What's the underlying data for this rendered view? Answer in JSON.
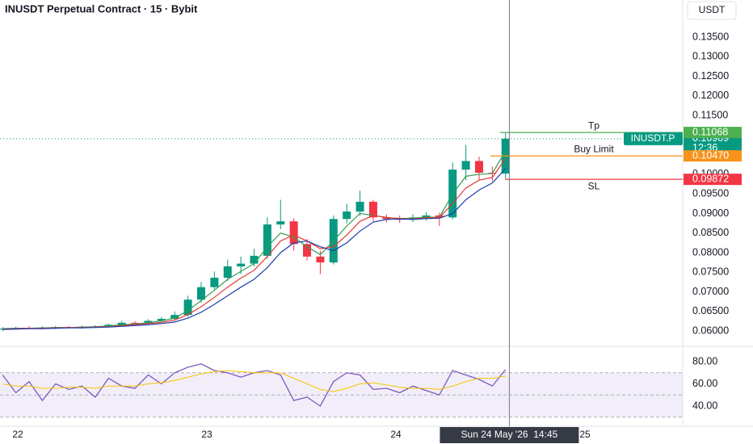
{
  "header": {
    "title": "INUSDT Perpetual Contract · 15 · Bybit",
    "currency_button": "USDT"
  },
  "chart_data": [
    {
      "type": "candlestick",
      "x": [
        21.92,
        21.99,
        22.06,
        22.13,
        22.2,
        22.27,
        22.34,
        22.41,
        22.48,
        22.55,
        22.62,
        22.69,
        22.76,
        22.83,
        22.9,
        22.97,
        23.04,
        23.11,
        23.18,
        23.25,
        23.32,
        23.39,
        23.46,
        23.53,
        23.6,
        23.67,
        23.74,
        23.81,
        23.88,
        23.95,
        24.02,
        24.09,
        24.16,
        24.23,
        24.3,
        24.37,
        24.44,
        24.51,
        24.58
      ],
      "open": [
        0.0604,
        0.0606,
        0.0608,
        0.0607,
        0.0609,
        0.061,
        0.0609,
        0.0611,
        0.0612,
        0.0616,
        0.0621,
        0.0619,
        0.0626,
        0.0631,
        0.0641,
        0.068,
        0.0712,
        0.0736,
        0.0765,
        0.0772,
        0.0792,
        0.0872,
        0.088,
        0.0822,
        0.079,
        0.0775,
        0.0886,
        0.0905,
        0.093,
        0.089,
        0.0886,
        0.0884,
        0.089,
        0.0895,
        0.089,
        0.1012,
        0.1034,
        0.1004,
        0.1002
      ],
      "high": [
        0.061,
        0.0611,
        0.0612,
        0.0612,
        0.0613,
        0.0613,
        0.0614,
        0.0615,
        0.0619,
        0.0626,
        0.0625,
        0.063,
        0.0636,
        0.065,
        0.069,
        0.0725,
        0.0752,
        0.0782,
        0.079,
        0.081,
        0.089,
        0.0935,
        0.0888,
        0.0835,
        0.0805,
        0.0895,
        0.0925,
        0.0958,
        0.0935,
        0.0898,
        0.0895,
        0.0898,
        0.0903,
        0.0902,
        0.103,
        0.1075,
        0.1045,
        0.102,
        0.1107
      ],
      "low": [
        0.06,
        0.0603,
        0.0604,
        0.0604,
        0.0605,
        0.0606,
        0.0606,
        0.0607,
        0.0609,
        0.0612,
        0.0614,
        0.0616,
        0.0622,
        0.0627,
        0.0636,
        0.0672,
        0.0705,
        0.0728,
        0.0745,
        0.0765,
        0.0785,
        0.086,
        0.0805,
        0.078,
        0.0745,
        0.077,
        0.0875,
        0.0895,
        0.088,
        0.0877,
        0.0876,
        0.0878,
        0.0882,
        0.0868,
        0.0885,
        0.0985,
        0.0985,
        0.0982,
        0.099
      ],
      "close": [
        0.0606,
        0.0608,
        0.0607,
        0.0609,
        0.061,
        0.0609,
        0.0611,
        0.0612,
        0.0616,
        0.0621,
        0.0619,
        0.0626,
        0.0631,
        0.0641,
        0.068,
        0.0712,
        0.0736,
        0.0765,
        0.0772,
        0.0792,
        0.0872,
        0.088,
        0.0822,
        0.079,
        0.0775,
        0.0886,
        0.0905,
        0.093,
        0.089,
        0.0886,
        0.0884,
        0.089,
        0.0895,
        0.089,
        0.1012,
        0.1034,
        0.1004,
        0.1002,
        0.1091
      ],
      "up_color": "#089981",
      "down_color": "#f23645",
      "moving_averages": [
        {
          "color": "#2e9e4f",
          "values": [
            0.0606,
            0.0607,
            0.0607,
            0.0608,
            0.0609,
            0.0609,
            0.061,
            0.0611,
            0.0613,
            0.0616,
            0.0618,
            0.0621,
            0.0626,
            0.0633,
            0.0652,
            0.0678,
            0.0704,
            0.0732,
            0.0752,
            0.0772,
            0.0815,
            0.085,
            0.084,
            0.0815,
            0.0795,
            0.083,
            0.0868,
            0.09,
            0.0895,
            0.089,
            0.0887,
            0.0888,
            0.0891,
            0.089,
            0.095,
            0.0995,
            0.1,
            0.1002,
            0.106
          ]
        },
        {
          "color": "#e53935",
          "values": [
            0.0605,
            0.0606,
            0.0607,
            0.0607,
            0.0608,
            0.0609,
            0.0609,
            0.061,
            0.0611,
            0.0614,
            0.0616,
            0.0619,
            0.0622,
            0.0628,
            0.0642,
            0.0662,
            0.0686,
            0.0712,
            0.0735,
            0.0755,
            0.079,
            0.083,
            0.0845,
            0.083,
            0.081,
            0.0815,
            0.0845,
            0.088,
            0.0895,
            0.089,
            0.0887,
            0.0886,
            0.0889,
            0.089,
            0.0925,
            0.0965,
            0.0985,
            0.0992,
            0.104
          ]
        },
        {
          "color": "#1e3fae",
          "values": [
            0.0604,
            0.0605,
            0.0606,
            0.0606,
            0.0607,
            0.0608,
            0.0608,
            0.0609,
            0.061,
            0.0612,
            0.0614,
            0.0616,
            0.0619,
            0.0623,
            0.0633,
            0.0648,
            0.0668,
            0.069,
            0.0712,
            0.0732,
            0.0762,
            0.08,
            0.0825,
            0.083,
            0.0815,
            0.0805,
            0.0825,
            0.0855,
            0.0878,
            0.0885,
            0.0886,
            0.0885,
            0.0887,
            0.0888,
            0.09,
            0.0935,
            0.096,
            0.0978,
            0.1015
          ]
        }
      ],
      "xlim": [
        21.906,
        25.517
      ],
      "xticks": [
        22,
        23,
        24,
        25
      ],
      "ylim": [
        0.0563,
        0.1445
      ],
      "yticks": [
        {
          "value": 0.06,
          "label": "0.06000"
        },
        {
          "value": 0.065,
          "label": "0.06500"
        },
        {
          "value": 0.07,
          "label": "0.07000"
        },
        {
          "value": 0.075,
          "label": "0.07500"
        },
        {
          "value": 0.08,
          "label": "0.08000"
        },
        {
          "value": 0.085,
          "label": "0.08500"
        },
        {
          "value": 0.09,
          "label": "0.09000"
        },
        {
          "value": 0.095,
          "label": "0.09500"
        },
        {
          "value": 0.1,
          "label": "0.10000"
        },
        {
          "value": 0.115,
          "label": "0.11500"
        },
        {
          "value": 0.12,
          "label": "0.12000"
        },
        {
          "value": 0.125,
          "label": "0.12500"
        },
        {
          "value": 0.13,
          "label": "0.13000"
        },
        {
          "value": 0.135,
          "label": "0.13500"
        }
      ],
      "levels": [
        {
          "name": "Tp",
          "value": 0.11068,
          "color": "#4caf50"
        },
        {
          "name": "Buy Limit",
          "value": 0.1047,
          "label": "0.10470",
          "color": "#f7931a"
        },
        {
          "name": "SL",
          "value": 0.09872,
          "label": "0.09872",
          "color": "#f23645"
        }
      ],
      "last_price": {
        "name": "INUSDT.P",
        "value": 0.10909,
        "countdown": "12:36",
        "color": "#089981"
      },
      "crosshair": {
        "x": 24.6,
        "label": "Sun 24 May '26  14:45"
      }
    },
    {
      "type": "line",
      "series": [
        {
          "color": "#7e57c2",
          "values": [
            68,
            52,
            62,
            45,
            60,
            55,
            58,
            48,
            65,
            58,
            56,
            68,
            60,
            70,
            75,
            78,
            72,
            70,
            66,
            70,
            72,
            68,
            45,
            48,
            40,
            62,
            70,
            68,
            55,
            56,
            52,
            58,
            54,
            50,
            72,
            68,
            64,
            58,
            73
          ]
        },
        {
          "color": "#f7c600",
          "values": [
            60,
            58,
            58,
            56,
            56,
            57,
            57,
            56,
            58,
            58,
            58,
            60,
            61,
            63,
            66,
            69,
            71,
            72,
            71,
            70,
            70,
            70,
            65,
            60,
            55,
            53,
            56,
            60,
            61,
            59,
            57,
            56,
            56,
            55,
            58,
            62,
            65,
            65,
            67
          ]
        }
      ],
      "ylim": [
        21.8,
        93.1
      ],
      "yticks": [
        {
          "value": 80,
          "label": "80.00"
        },
        {
          "value": 60,
          "label": "60.00"
        },
        {
          "value": 40,
          "label": "40.00"
        }
      ],
      "levels": [
        70,
        50,
        30
      ]
    }
  ]
}
